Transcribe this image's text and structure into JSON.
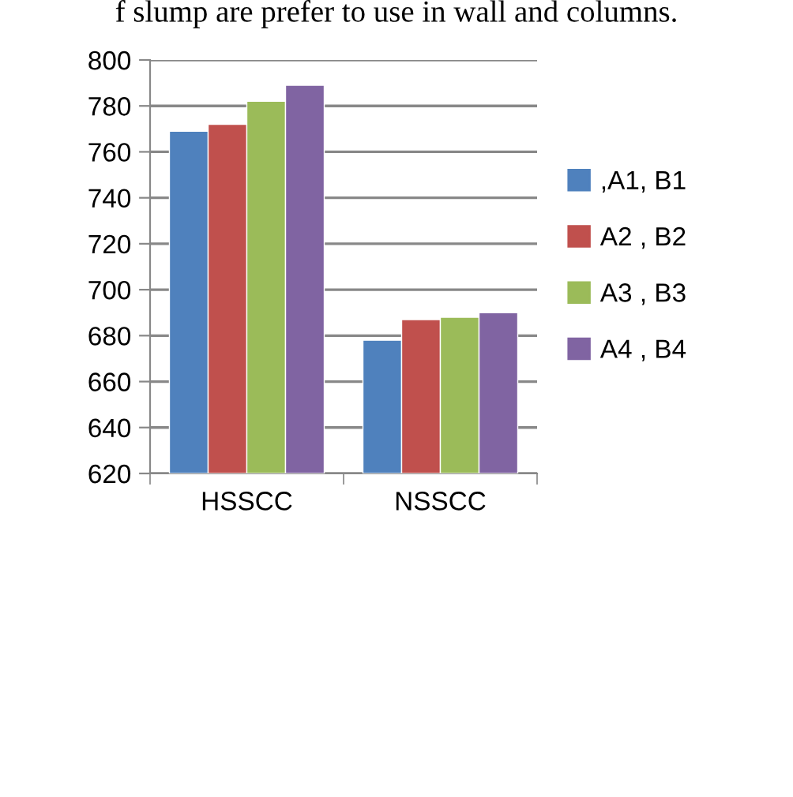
{
  "chart_data": {
    "type": "bar",
    "categories": [
      "HSSCC",
      "NSSCC"
    ],
    "series": [
      {
        "name": ",A1, B1",
        "color": "#4f81bd",
        "values": [
          769,
          678
        ]
      },
      {
        "name": "A2 , B2",
        "color": "#c0504d",
        "values": [
          772,
          687
        ]
      },
      {
        "name": "A3 , B3",
        "color": "#9bbb59",
        "values": [
          782,
          688
        ]
      },
      {
        "name": "A4 , B4",
        "color": "#8064a2",
        "values": [
          789,
          690
        ]
      }
    ],
    "ylim": [
      620,
      800
    ],
    "yticks": [
      620,
      640,
      660,
      680,
      700,
      720,
      740,
      760,
      780,
      800
    ],
    "grid": "y",
    "legend": "right",
    "annotations": [
      "f slump are prefer to use in wall and columns."
    ]
  }
}
